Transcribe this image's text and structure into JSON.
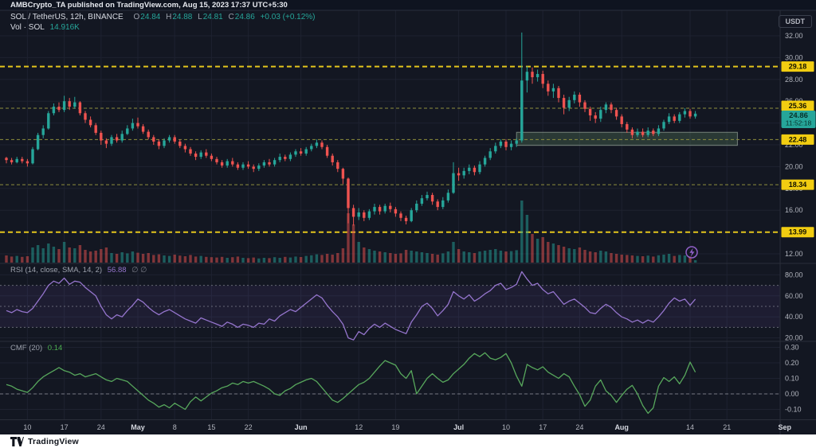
{
  "header": {
    "attribution": "AMBCrypto_TA published on TradingView.com, Aug 15, 2023 17:37 UTC+5:30"
  },
  "symbol_legend": {
    "symbol": "SOL / TetherUS, 12h, BINANCE",
    "o_label": "O",
    "o_value": "24.84",
    "h_label": "H",
    "h_value": "24.88",
    "l_label": "L",
    "l_value": "24.81",
    "c_label": "C",
    "c_value": "24.86",
    "change": "+0.03 (+0.12%)",
    "vol_label": "Vol · SOL",
    "vol_value": "14.916K"
  },
  "axis": {
    "currency_button": "USDT",
    "last_price": "24.86",
    "countdown": "11:52:18"
  },
  "rsi_legend": {
    "title": "RSI (14, close, SMA, 14, 2)",
    "value": "56.88",
    "hidden_values": "∅  ∅"
  },
  "cmf_legend": {
    "title": "CMF (20)",
    "value": "0.14"
  },
  "footer": {
    "brand": "TradingView"
  },
  "colors": {
    "up": "#26a69a",
    "down": "#ef5350",
    "rsi_line": "#9575cd",
    "rsi_band": "rgba(126,87,194,0.10)",
    "cmf_line": "#57a75c",
    "level_bright": "#e3c51c",
    "level_dim": "#8f8f3d",
    "badge_yellow": "#f2cd11",
    "badge_last": "#26a69a",
    "grid": "#1e2230",
    "separator": "#2a2e39",
    "axis_text": "#b2b5be",
    "month_text": "#d5d8e0",
    "zone_fill": "rgba(103,146,103,0.28)",
    "zone_border": "rgba(186,203,186,0.55)",
    "icon_purple": "#9060c8"
  },
  "chart_data": [
    {
      "type": "candlestick",
      "title": "SOL / TetherUS, 12h, BINANCE",
      "x_start": "Apr 6",
      "x_end": "Aug 15",
      "ylim": [
        11.8,
        33.5
      ],
      "price_ticks": [
        32,
        30,
        28,
        26,
        24,
        22,
        20,
        18,
        16,
        14,
        12
      ],
      "first_open": 20.8,
      "close": [
        20.6,
        20.4,
        20.7,
        20.5,
        20.3,
        21.6,
        22.9,
        23.5,
        24.9,
        25.5,
        25.2,
        26.0,
        25.5,
        25.9,
        24.9,
        24.3,
        23.8,
        23.1,
        22.4,
        22.1,
        22.7,
        22.4,
        23.0,
        23.5,
        24.0,
        23.7,
        23.2,
        22.7,
        22.3,
        21.9,
        22.4,
        22.7,
        22.3,
        21.9,
        21.6,
        21.2,
        20.9,
        21.3,
        21.0,
        20.7,
        20.4,
        20.1,
        20.5,
        20.2,
        19.9,
        20.2,
        20.0,
        19.8,
        20.1,
        20.4,
        20.2,
        20.6,
        20.9,
        20.7,
        21.1,
        21.4,
        21.2,
        21.6,
        21.9,
        22.2,
        21.8,
        21.0,
        20.4,
        19.8,
        18.9,
        16.2,
        15.4,
        15.8,
        15.3,
        15.9,
        16.3,
        15.9,
        16.4,
        16.1,
        15.7,
        15.3,
        15.0,
        16.0,
        16.6,
        17.1,
        17.4,
        16.8,
        16.3,
        16.9,
        17.6,
        19.4,
        19.2,
        19.6,
        19.9,
        19.5,
        20.2,
        20.8,
        21.4,
        21.9,
        22.3,
        21.8,
        22.1,
        22.4,
        27.9,
        28.7,
        28.2,
        28.5,
        27.6,
        26.9,
        27.2,
        26.3,
        25.4,
        26.1,
        26.6,
        25.9,
        25.3,
        24.7,
        24.4,
        25.2,
        25.7,
        25.2,
        24.6,
        23.9,
        23.4,
        22.9,
        23.2,
        22.9,
        23.3,
        23.0,
        23.5,
        24.1,
        24.6,
        24.2,
        24.8,
        25.1,
        24.6,
        24.86
      ],
      "high": [
        20.9,
        20.8,
        20.9,
        20.9,
        20.7,
        21.8,
        23.1,
        23.8,
        25.1,
        25.8,
        25.9,
        26.5,
        26.3,
        26.4,
        26.0,
        25.1,
        24.6,
        24.0,
        23.3,
        22.6,
        22.9,
        23.0,
        23.3,
        23.8,
        24.4,
        24.5,
        23.9,
        23.4,
        22.9,
        22.5,
        22.6,
        22.9,
        22.9,
        22.5,
        22.1,
        21.8,
        21.4,
        21.5,
        21.6,
        21.2,
        20.9,
        20.6,
        20.7,
        20.8,
        20.4,
        20.4,
        20.5,
        20.2,
        20.3,
        20.6,
        20.7,
        20.8,
        21.2,
        21.1,
        21.3,
        21.6,
        21.7,
        21.8,
        22.1,
        22.5,
        22.4,
        22.0,
        21.2,
        20.6,
        19.9,
        19.0,
        16.5,
        16.2,
        16.0,
        16.1,
        16.6,
        16.5,
        16.6,
        16.7,
        16.3,
        15.9,
        15.5,
        16.2,
        16.9,
        17.4,
        17.7,
        17.6,
        17.0,
        17.2,
        17.9,
        20.4,
        19.9,
        19.9,
        20.2,
        20.1,
        20.5,
        21.0,
        21.7,
        22.2,
        22.5,
        22.5,
        22.4,
        22.6,
        32.3,
        29.2,
        29.1,
        28.9,
        28.8,
        27.9,
        27.6,
        27.4,
        26.6,
        26.4,
        26.9,
        26.8,
        26.1,
        25.5,
        25.0,
        25.5,
        25.9,
        25.9,
        25.4,
        24.8,
        24.1,
        23.6,
        23.5,
        23.5,
        23.6,
        23.5,
        23.8,
        24.3,
        24.9,
        24.8,
        25.0,
        25.36,
        25.3,
        25.1
      ],
      "low": [
        20.3,
        20.2,
        20.3,
        20.3,
        20.0,
        20.2,
        21.5,
        22.6,
        23.4,
        24.7,
        25.0,
        25.0,
        25.2,
        25.3,
        24.7,
        24.0,
        23.6,
        22.9,
        22.0,
        21.7,
        21.9,
        22.2,
        22.2,
        22.9,
        23.3,
        23.5,
        23.0,
        22.5,
        22.0,
        21.6,
        21.7,
        22.2,
        22.1,
        21.7,
        21.3,
        21.0,
        20.6,
        20.7,
        20.8,
        20.5,
        20.2,
        19.9,
        19.9,
        20.0,
        19.7,
        19.7,
        19.8,
        19.5,
        19.6,
        19.9,
        20.0,
        20.0,
        20.4,
        20.5,
        20.5,
        20.9,
        21.0,
        21.0,
        21.4,
        21.7,
        21.6,
        20.8,
        20.1,
        19.5,
        18.4,
        14.8,
        14.6,
        15.1,
        15.0,
        15.1,
        15.6,
        15.6,
        15.7,
        15.8,
        15.4,
        15.0,
        14.7,
        14.9,
        15.8,
        16.4,
        16.9,
        16.5,
        16.0,
        16.1,
        16.7,
        17.5,
        18.7,
        18.9,
        19.3,
        19.2,
        19.3,
        20.0,
        20.6,
        21.2,
        21.7,
        21.5,
        21.5,
        21.8,
        22.2,
        26.8,
        27.6,
        27.8,
        27.2,
        26.5,
        26.3,
        25.9,
        24.8,
        25.1,
        25.8,
        25.5,
        25.0,
        24.2,
        24.0,
        24.1,
        24.9,
        24.9,
        24.3,
        23.6,
        23.1,
        22.6,
        22.7,
        22.7,
        22.7,
        22.8,
        22.8,
        23.3,
        23.9,
        24.0,
        24.0,
        24.5,
        24.4,
        24.4
      ],
      "levels": [
        {
          "value": 29.18,
          "style": "bright"
        },
        {
          "value": 25.36,
          "style": "dim"
        },
        {
          "value": 22.48,
          "style": "dim"
        },
        {
          "value": 18.34,
          "style": "dim"
        },
        {
          "value": 13.99,
          "style": "bright"
        }
      ],
      "last_price": 24.86,
      "support_zone": {
        "price_top": 23.15,
        "price_bottom": 21.95,
        "start_index": 97,
        "end_index": 139
      },
      "time_ticks": [
        {
          "label": "10",
          "i": 4
        },
        {
          "label": "17",
          "i": 11
        },
        {
          "label": "24",
          "i": 18
        },
        {
          "label": "May",
          "i": 25
        },
        {
          "label": "8",
          "i": 32
        },
        {
          "label": "15",
          "i": 39
        },
        {
          "label": "22",
          "i": 46
        },
        {
          "label": "Jun",
          "i": 56
        },
        {
          "label": "12",
          "i": 67
        },
        {
          "label": "19",
          "i": 74
        },
        {
          "label": "Jul",
          "i": 86
        },
        {
          "label": "10",
          "i": 95
        },
        {
          "label": "17",
          "i": 102
        },
        {
          "label": "24",
          "i": 109
        },
        {
          "label": "Aug",
          "i": 117
        },
        {
          "label": "14",
          "i": 130
        },
        {
          "label": "21",
          "i": 137
        },
        {
          "label": "Sep",
          "i": 148
        }
      ]
    },
    {
      "type": "bar",
      "name": "Volume",
      "unit": "K",
      "max_scale": 390,
      "last_value": 14.916,
      "values": [
        45,
        38,
        42,
        36,
        40,
        95,
        110,
        90,
        120,
        100,
        85,
        130,
        95,
        90,
        110,
        80,
        70,
        75,
        85,
        95,
        60,
        55,
        65,
        58,
        70,
        62,
        55,
        60,
        48,
        52,
        45,
        42,
        50,
        44,
        40,
        48,
        38,
        42,
        36,
        34,
        32,
        36,
        30,
        34,
        38,
        30,
        28,
        32,
        26,
        30,
        28,
        34,
        30,
        36,
        32,
        38,
        35,
        42,
        46,
        52,
        48,
        55,
        50,
        60,
        90,
        310,
        240,
        130,
        95,
        85,
        75,
        70,
        65,
        60,
        55,
        58,
        80,
        75,
        70,
        65,
        60,
        55,
        50,
        58,
        70,
        130,
        85,
        70,
        65,
        60,
        70,
        75,
        80,
        85,
        75,
        70,
        72,
        78,
        390,
        300,
        180,
        150,
        160,
        130,
        120,
        110,
        100,
        90,
        85,
        95,
        80,
        70,
        65,
        75,
        70,
        60,
        55,
        50,
        48,
        45,
        42,
        40,
        44,
        38,
        46,
        50,
        55,
        42,
        48,
        45,
        40,
        15
      ]
    },
    {
      "type": "line",
      "name": "RSI (14, close, SMA, 14, 2)",
      "current": 56.88,
      "ticks": [
        80,
        60,
        40,
        20
      ],
      "band": [
        30,
        70
      ],
      "mid": 50,
      "ylim": [
        15,
        88
      ],
      "values": [
        46,
        44,
        47,
        45,
        44,
        48,
        55,
        62,
        70,
        74,
        72,
        77,
        71,
        74,
        73,
        68,
        64,
        60,
        50,
        42,
        38,
        42,
        40,
        46,
        51,
        57,
        54,
        49,
        45,
        42,
        45,
        47,
        44,
        41,
        38,
        36,
        34,
        39,
        37,
        35,
        33,
        31,
        35,
        33,
        30,
        33,
        32,
        30,
        34,
        33,
        38,
        36,
        41,
        44,
        47,
        45,
        49,
        53,
        57,
        61,
        58,
        51,
        45,
        40,
        33,
        20,
        18,
        26,
        23,
        29,
        33,
        30,
        34,
        31,
        28,
        26,
        24,
        35,
        42,
        50,
        53,
        48,
        41,
        46,
        52,
        64,
        60,
        57,
        61,
        55,
        58,
        62,
        65,
        70,
        72,
        66,
        68,
        71,
        83,
        76,
        70,
        72,
        66,
        62,
        64,
        58,
        52,
        55,
        57,
        53,
        49,
        44,
        43,
        48,
        52,
        49,
        44,
        40,
        38,
        35,
        37,
        34,
        37,
        35,
        40,
        46,
        53,
        58,
        55,
        57,
        51,
        56.88
      ]
    },
    {
      "type": "line",
      "name": "CMF (20)",
      "current": 0.14,
      "ticks": [
        0.3,
        0.2,
        0.1,
        0.0,
        -0.1
      ],
      "zero_line": 0,
      "ylim": [
        -0.15,
        0.31
      ],
      "values": [
        0.06,
        0.05,
        0.03,
        0.02,
        0.01,
        0.04,
        0.08,
        0.11,
        0.13,
        0.15,
        0.17,
        0.15,
        0.14,
        0.12,
        0.13,
        0.11,
        0.12,
        0.13,
        0.11,
        0.09,
        0.08,
        0.1,
        0.09,
        0.08,
        0.05,
        0.02,
        -0.01,
        -0.04,
        -0.06,
        -0.085,
        -0.07,
        -0.09,
        -0.06,
        -0.08,
        -0.1,
        -0.05,
        -0.02,
        -0.045,
        -0.02,
        0.005,
        0.02,
        0.04,
        0.05,
        0.07,
        0.06,
        0.08,
        0.07,
        0.08,
        0.065,
        0.05,
        0.03,
        0.0,
        -0.01,
        0.02,
        0.035,
        0.06,
        0.075,
        0.09,
        0.1,
        0.08,
        0.04,
        0.0,
        -0.04,
        -0.055,
        -0.03,
        0.0,
        0.03,
        0.06,
        0.075,
        0.1,
        0.14,
        0.18,
        0.215,
        0.2,
        0.185,
        0.13,
        0.1,
        0.15,
        0.0,
        0.05,
        0.1,
        0.13,
        0.1,
        0.075,
        0.09,
        0.13,
        0.16,
        0.19,
        0.23,
        0.26,
        0.24,
        0.265,
        0.23,
        0.22,
        0.235,
        0.26,
        0.2,
        0.115,
        0.05,
        0.19,
        0.17,
        0.155,
        0.175,
        0.14,
        0.12,
        0.1,
        0.13,
        0.11,
        0.05,
        -0.005,
        -0.08,
        -0.04,
        0.05,
        0.09,
        0.02,
        -0.01,
        -0.055,
        -0.01,
        0.03,
        0.055,
        0.0,
        -0.075,
        -0.125,
        -0.09,
        0.05,
        0.105,
        0.08,
        0.11,
        0.065,
        0.12,
        0.205,
        0.14
      ]
    }
  ]
}
